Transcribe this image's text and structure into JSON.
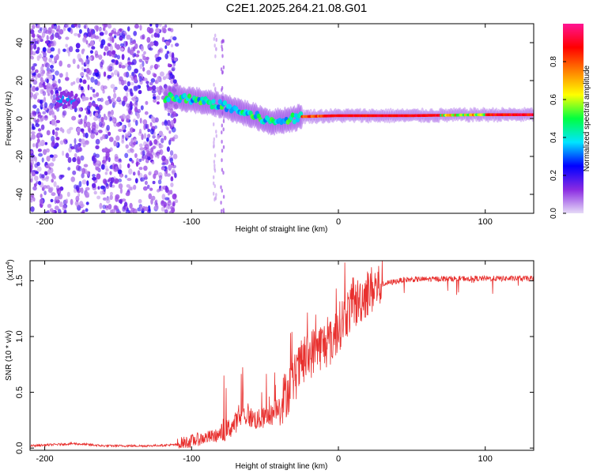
{
  "title": "C2E1.2025.264.21.08.G01",
  "chart_data": [
    {
      "type": "heatmap",
      "name": "spectrogram",
      "xlabel": "Height of straight line (km)",
      "ylabel": "Frequency (Hz)",
      "xlim": [
        -210,
        133
      ],
      "ylim": [
        -50,
        50
      ],
      "xticks": [
        -200,
        -100,
        0,
        100
      ],
      "yticks": [
        -40,
        -20,
        0,
        20,
        40
      ],
      "colorbar": {
        "label": "Normalized spectral amplitude",
        "range": [
          0,
          1
        ],
        "ticks": [
          0.0,
          0.2,
          0.4,
          0.6,
          0.8
        ],
        "tick_labels": [
          "0.0",
          "0.2",
          "0.4",
          "0.6",
          "0.8"
        ],
        "colors": [
          "#e6dbf7",
          "#8a2be2",
          "#0000ff",
          "#00e5ff",
          "#00ff40",
          "#ffff00",
          "#ff8000",
          "#ff0000",
          "#ff1493"
        ]
      },
      "signal_track": [
        {
          "x": -185,
          "f": 10
        },
        {
          "x": -115,
          "f": 11
        },
        {
          "x": -100,
          "f": 10
        },
        {
          "x": -80,
          "f": 7
        },
        {
          "x": -60,
          "f": 2
        },
        {
          "x": -45,
          "f": -2
        },
        {
          "x": -30,
          "f": 0
        },
        {
          "x": -25,
          "f": 1
        },
        {
          "x": 0,
          "f": 1.5
        },
        {
          "x": 50,
          "f": 1.5
        },
        {
          "x": 100,
          "f": 2
        },
        {
          "x": 133,
          "f": 2
        }
      ]
    },
    {
      "type": "line",
      "name": "snr",
      "xlabel": "Height of straight line (km)",
      "ylabel": "SNR (10 * v/v)",
      "y_multiplier": "(x10",
      "y_multiplier_exp": "4",
      "y_multiplier_close": ")",
      "xlim": [
        -210,
        133
      ],
      "ylim": [
        -0.02,
        1.68
      ],
      "xticks": [
        -200,
        -100,
        0,
        100
      ],
      "yticks": [
        0.0,
        0.5,
        1.0,
        1.5
      ],
      "ytick_labels": [
        "0.0",
        "0.5",
        "1.0",
        "1.5"
      ],
      "color": "#e8302e",
      "series": [
        {
          "x": -210,
          "y": 0.02
        },
        {
          "x": -180,
          "y": 0.04
        },
        {
          "x": -160,
          "y": 0.02
        },
        {
          "x": -130,
          "y": 0.02
        },
        {
          "x": -110,
          "y": 0.03
        },
        {
          "x": -95,
          "y": 0.08
        },
        {
          "x": -80,
          "y": 0.12
        },
        {
          "x": -72,
          "y": 0.2
        },
        {
          "x": -65,
          "y": 0.3
        },
        {
          "x": -55,
          "y": 0.25
        },
        {
          "x": -45,
          "y": 0.3
        },
        {
          "x": -35,
          "y": 0.5
        },
        {
          "x": -25,
          "y": 0.75
        },
        {
          "x": -15,
          "y": 0.9
        },
        {
          "x": -5,
          "y": 0.95
        },
        {
          "x": 5,
          "y": 1.2
        },
        {
          "x": 20,
          "y": 1.4
        },
        {
          "x": 30,
          "y": 1.47
        },
        {
          "x": 45,
          "y": 1.51
        },
        {
          "x": 80,
          "y": 1.52
        },
        {
          "x": 100,
          "y": 1.52
        },
        {
          "x": 133,
          "y": 1.52
        }
      ]
    }
  ]
}
